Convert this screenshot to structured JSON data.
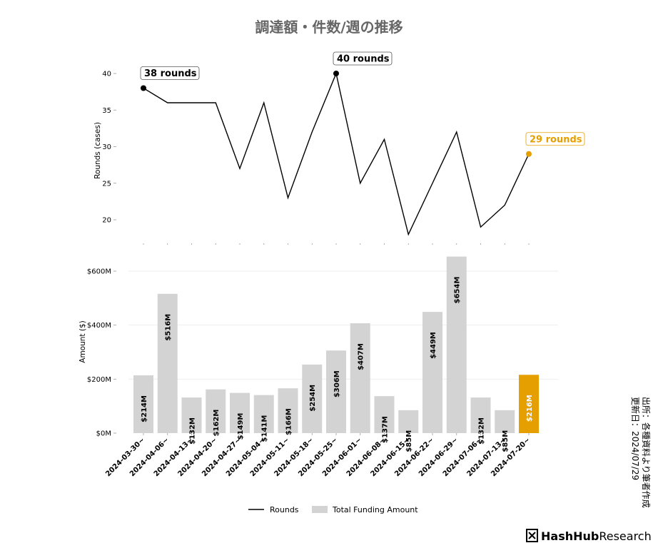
{
  "title": "調達額・件数/週の推移",
  "source_lines": [
    "出所：各種資料より筆者作成",
    "更新日：2024/07/29"
  ],
  "brand": {
    "bold": "HashHub",
    "light": "Research"
  },
  "colors": {
    "bar": "#d3d3d3",
    "highlight": "#e69f00",
    "line": "#000000",
    "grid": "#eeeeee"
  },
  "chart_data": [
    {
      "type": "line",
      "ylabel": "Rounds (cases)",
      "yticks": [
        20,
        25,
        30,
        35,
        40
      ],
      "ylim": [
        17.5,
        41
      ],
      "grid": false,
      "x": [
        "2024-03-30~",
        "2024-04-06~",
        "2024-04-13~",
        "2024-04-20~",
        "2024-04-27~",
        "2024-05-04~",
        "2024-05-11~",
        "2024-05-18~",
        "2024-05-25~",
        "2024-06-01~",
        "2024-06-08~",
        "2024-06-15~",
        "2024-06-22~",
        "2024-06-29~",
        "2024-07-06~",
        "2024-07-13~",
        "2024-07-20~"
      ],
      "series": [
        {
          "name": "Rounds",
          "values": [
            38,
            36,
            36,
            36,
            27,
            36,
            23,
            32,
            40,
            25,
            31,
            18,
            25,
            32,
            19,
            22,
            29
          ]
        }
      ],
      "annotations": [
        {
          "index": 0,
          "text": "38 rounds",
          "style": "dark"
        },
        {
          "index": 8,
          "text": "40 rounds",
          "style": "dark"
        },
        {
          "index": 16,
          "text": "29 rounds",
          "style": "highlight"
        }
      ]
    },
    {
      "type": "bar",
      "ylabel": "Amount ($)",
      "yticks": [
        "$0M",
        "$200M",
        "$400M",
        "$600M"
      ],
      "ytick_values": [
        0,
        200,
        400,
        600
      ],
      "ylim": [
        0,
        680
      ],
      "grid": true,
      "categories": [
        "2024-03-30~",
        "2024-04-06~",
        "2024-04-13~",
        "2024-04-20~",
        "2024-04-27~",
        "2024-05-04~",
        "2024-05-11~",
        "2024-05-18~",
        "2024-05-25~",
        "2024-06-01~",
        "2024-06-08~",
        "2024-06-15~",
        "2024-06-22~",
        "2024-06-29~",
        "2024-07-06~",
        "2024-07-13~",
        "2024-07-20~"
      ],
      "series": [
        {
          "name": "Total Funding Amount",
          "values": [
            214,
            516,
            132,
            162,
            149,
            141,
            166,
            254,
            306,
            407,
            137,
            85,
            449,
            654,
            132,
            85,
            216
          ]
        }
      ],
      "value_labels": [
        "$214M",
        "$516M",
        "$132M",
        "$162M",
        "$149M",
        "$141M",
        "$166M",
        "$254M",
        "$306M",
        "$407M",
        "$137M",
        "$85M",
        "$449M",
        "$654M",
        "$132M",
        "$85M",
        "$216M"
      ],
      "highlight_index": 16
    }
  ],
  "legend": {
    "position": "bottom-center",
    "items": [
      {
        "label": "Rounds",
        "kind": "line"
      },
      {
        "label": "Total Funding Amount",
        "kind": "bar"
      }
    ]
  }
}
